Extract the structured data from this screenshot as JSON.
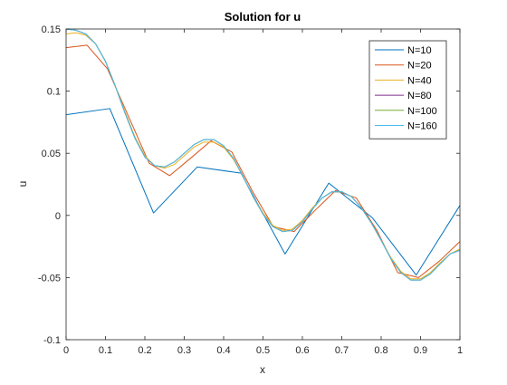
{
  "chart_data": {
    "type": "line",
    "title": "Solution for u",
    "xlabel": "x",
    "ylabel": "u",
    "xlim": [
      0,
      1
    ],
    "ylim": [
      -0.1,
      0.15
    ],
    "xticks": [
      0,
      0.1,
      0.2,
      0.3,
      0.4,
      0.5,
      0.6,
      0.7,
      0.8,
      0.9,
      1
    ],
    "xtick_labels": [
      "0",
      "0.1",
      "0.2",
      "0.3",
      "0.4",
      "0.5",
      "0.6",
      "0.7",
      "0.8",
      "0.9",
      "1"
    ],
    "yticks": [
      -0.1,
      -0.05,
      0,
      0.05,
      0.1,
      0.15
    ],
    "ytick_labels": [
      "-0.1",
      "-0.05",
      "0",
      "0.05",
      "0.1",
      "0.15"
    ],
    "grid": false,
    "legend_position": "top-right",
    "series": [
      {
        "name": "N=10",
        "color": "#0072BD",
        "x": [
          0,
          0.111,
          0.222,
          0.333,
          0.444,
          0.556,
          0.667,
          0.778,
          0.889,
          1.0
        ],
        "y": [
          0.081,
          0.086,
          0.002,
          0.039,
          0.034,
          -0.031,
          0.026,
          -0.002,
          -0.048,
          0.008
        ]
      },
      {
        "name": "N=20",
        "color": "#D95319",
        "x": [
          0,
          0.053,
          0.105,
          0.158,
          0.211,
          0.263,
          0.316,
          0.368,
          0.421,
          0.474,
          0.526,
          0.579,
          0.632,
          0.684,
          0.737,
          0.789,
          0.842,
          0.895,
          0.947,
          1.0
        ],
        "y": [
          0.135,
          0.137,
          0.118,
          0.08,
          0.042,
          0.032,
          0.046,
          0.06,
          0.051,
          0.019,
          -0.009,
          -0.013,
          0.004,
          0.02,
          0.014,
          -0.012,
          -0.046,
          -0.05,
          -0.037,
          -0.021
        ]
      },
      {
        "name": "N=40",
        "color": "#EDB120",
        "x": [
          0,
          0.025,
          0.05,
          0.075,
          0.1,
          0.125,
          0.15,
          0.175,
          0.2,
          0.225,
          0.25,
          0.275,
          0.3,
          0.325,
          0.35,
          0.375,
          0.4,
          0.425,
          0.45,
          0.475,
          0.5,
          0.525,
          0.55,
          0.575,
          0.6,
          0.625,
          0.65,
          0.675,
          0.7,
          0.725,
          0.75,
          0.775,
          0.8,
          0.825,
          0.85,
          0.875,
          0.9,
          0.925,
          0.95,
          0.975,
          1.0
        ],
        "y": [
          0.146,
          0.147,
          0.145,
          0.138,
          0.124,
          0.104,
          0.083,
          0.063,
          0.048,
          0.04,
          0.038,
          0.041,
          0.048,
          0.055,
          0.059,
          0.059,
          0.055,
          0.045,
          0.031,
          0.015,
          0.002,
          -0.008,
          -0.012,
          -0.011,
          -0.004,
          0.006,
          0.014,
          0.019,
          0.019,
          0.015,
          0.006,
          -0.006,
          -0.02,
          -0.034,
          -0.045,
          -0.051,
          -0.051,
          -0.046,
          -0.038,
          -0.031,
          -0.027
        ]
      },
      {
        "name": "N=80",
        "color": "#7E2F8E",
        "x": [
          0,
          0.025,
          0.05,
          0.075,
          0.1,
          0.125,
          0.15,
          0.175,
          0.2,
          0.225,
          0.25,
          0.275,
          0.3,
          0.325,
          0.35,
          0.375,
          0.4,
          0.425,
          0.45,
          0.475,
          0.5,
          0.525,
          0.55,
          0.575,
          0.6,
          0.625,
          0.65,
          0.675,
          0.7,
          0.725,
          0.75,
          0.775,
          0.8,
          0.825,
          0.85,
          0.875,
          0.9,
          0.925,
          0.95,
          0.975,
          1.0
        ],
        "y": [
          0.15,
          0.149,
          0.146,
          0.138,
          0.124,
          0.104,
          0.082,
          0.062,
          0.047,
          0.04,
          0.039,
          0.043,
          0.05,
          0.057,
          0.061,
          0.061,
          0.056,
          0.046,
          0.031,
          0.015,
          0.001,
          -0.009,
          -0.013,
          -0.012,
          -0.005,
          0.005,
          0.014,
          0.019,
          0.019,
          0.015,
          0.006,
          -0.006,
          -0.02,
          -0.035,
          -0.046,
          -0.052,
          -0.052,
          -0.047,
          -0.039,
          -0.031,
          -0.028
        ]
      },
      {
        "name": "N=100",
        "color": "#77AC30",
        "x": [
          0,
          0.025,
          0.05,
          0.075,
          0.1,
          0.125,
          0.15,
          0.175,
          0.2,
          0.225,
          0.25,
          0.275,
          0.3,
          0.325,
          0.35,
          0.375,
          0.4,
          0.425,
          0.45,
          0.475,
          0.5,
          0.525,
          0.55,
          0.575,
          0.6,
          0.625,
          0.65,
          0.675,
          0.7,
          0.725,
          0.75,
          0.775,
          0.8,
          0.825,
          0.85,
          0.875,
          0.9,
          0.925,
          0.95,
          0.975,
          1.0
        ],
        "y": [
          0.15,
          0.149,
          0.146,
          0.138,
          0.124,
          0.104,
          0.082,
          0.062,
          0.047,
          0.04,
          0.039,
          0.043,
          0.05,
          0.057,
          0.061,
          0.061,
          0.056,
          0.046,
          0.031,
          0.015,
          0.001,
          -0.009,
          -0.013,
          -0.012,
          -0.005,
          0.005,
          0.014,
          0.019,
          0.019,
          0.015,
          0.006,
          -0.006,
          -0.02,
          -0.035,
          -0.046,
          -0.052,
          -0.052,
          -0.047,
          -0.039,
          -0.031,
          -0.028
        ]
      },
      {
        "name": "N=160",
        "color": "#4DBEEE",
        "x": [
          0,
          0.025,
          0.05,
          0.075,
          0.1,
          0.125,
          0.15,
          0.175,
          0.2,
          0.225,
          0.25,
          0.275,
          0.3,
          0.325,
          0.35,
          0.375,
          0.4,
          0.425,
          0.45,
          0.475,
          0.5,
          0.525,
          0.55,
          0.575,
          0.6,
          0.625,
          0.65,
          0.675,
          0.7,
          0.725,
          0.75,
          0.775,
          0.8,
          0.825,
          0.85,
          0.875,
          0.9,
          0.925,
          0.95,
          0.975,
          1.0
        ],
        "y": [
          0.15,
          0.149,
          0.146,
          0.138,
          0.124,
          0.104,
          0.082,
          0.062,
          0.047,
          0.04,
          0.039,
          0.043,
          0.05,
          0.057,
          0.061,
          0.061,
          0.056,
          0.046,
          0.031,
          0.015,
          0.001,
          -0.009,
          -0.013,
          -0.012,
          -0.005,
          0.005,
          0.014,
          0.019,
          0.019,
          0.015,
          0.006,
          -0.006,
          -0.02,
          -0.035,
          -0.046,
          -0.052,
          -0.052,
          -0.047,
          -0.039,
          -0.031,
          -0.028
        ]
      }
    ]
  }
}
